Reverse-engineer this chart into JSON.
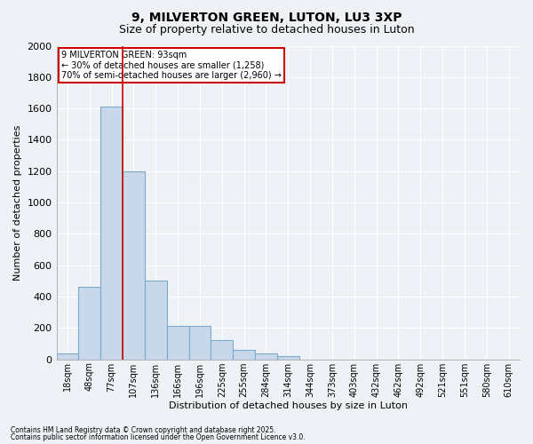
{
  "title1": "9, MILVERTON GREEN, LUTON, LU3 3XP",
  "title2": "Size of property relative to detached houses in Luton",
  "xlabel": "Distribution of detached houses by size in Luton",
  "ylabel": "Number of detached properties",
  "categories": [
    "18sqm",
    "48sqm",
    "77sqm",
    "107sqm",
    "136sqm",
    "166sqm",
    "196sqm",
    "225sqm",
    "255sqm",
    "284sqm",
    "314sqm",
    "344sqm",
    "373sqm",
    "403sqm",
    "432sqm",
    "462sqm",
    "492sqm",
    "521sqm",
    "551sqm",
    "580sqm",
    "610sqm"
  ],
  "values": [
    35,
    465,
    1610,
    1200,
    500,
    215,
    215,
    125,
    60,
    35,
    20,
    0,
    0,
    0,
    0,
    0,
    0,
    0,
    0,
    0,
    0
  ],
  "bar_color": "#c8d8ea",
  "bar_edge_color": "#7aaac8",
  "vline_color": "#cc0000",
  "vline_pos": 2.5,
  "annotation_text": "9 MILVERTON GREEN: 93sqm\n← 30% of detached houses are smaller (1,258)\n70% of semi-detached houses are larger (2,960) →",
  "annotation_box_color": "#ffffff",
  "annotation_box_edge": "#cc0000",
  "ylim": [
    0,
    2000
  ],
  "yticks": [
    0,
    200,
    400,
    600,
    800,
    1000,
    1200,
    1400,
    1600,
    1800,
    2000
  ],
  "footer1": "Contains HM Land Registry data © Crown copyright and database right 2025.",
  "footer2": "Contains public sector information licensed under the Open Government Licence v3.0.",
  "bg_color": "#eef2f7",
  "plot_bg_color": "#eef2f7",
  "grid_color": "#ffffff",
  "title_fontsize": 10,
  "subtitle_fontsize": 9,
  "tick_fontsize": 7,
  "label_fontsize": 8,
  "annotation_fontsize": 7,
  "footer_fontsize": 5.5
}
